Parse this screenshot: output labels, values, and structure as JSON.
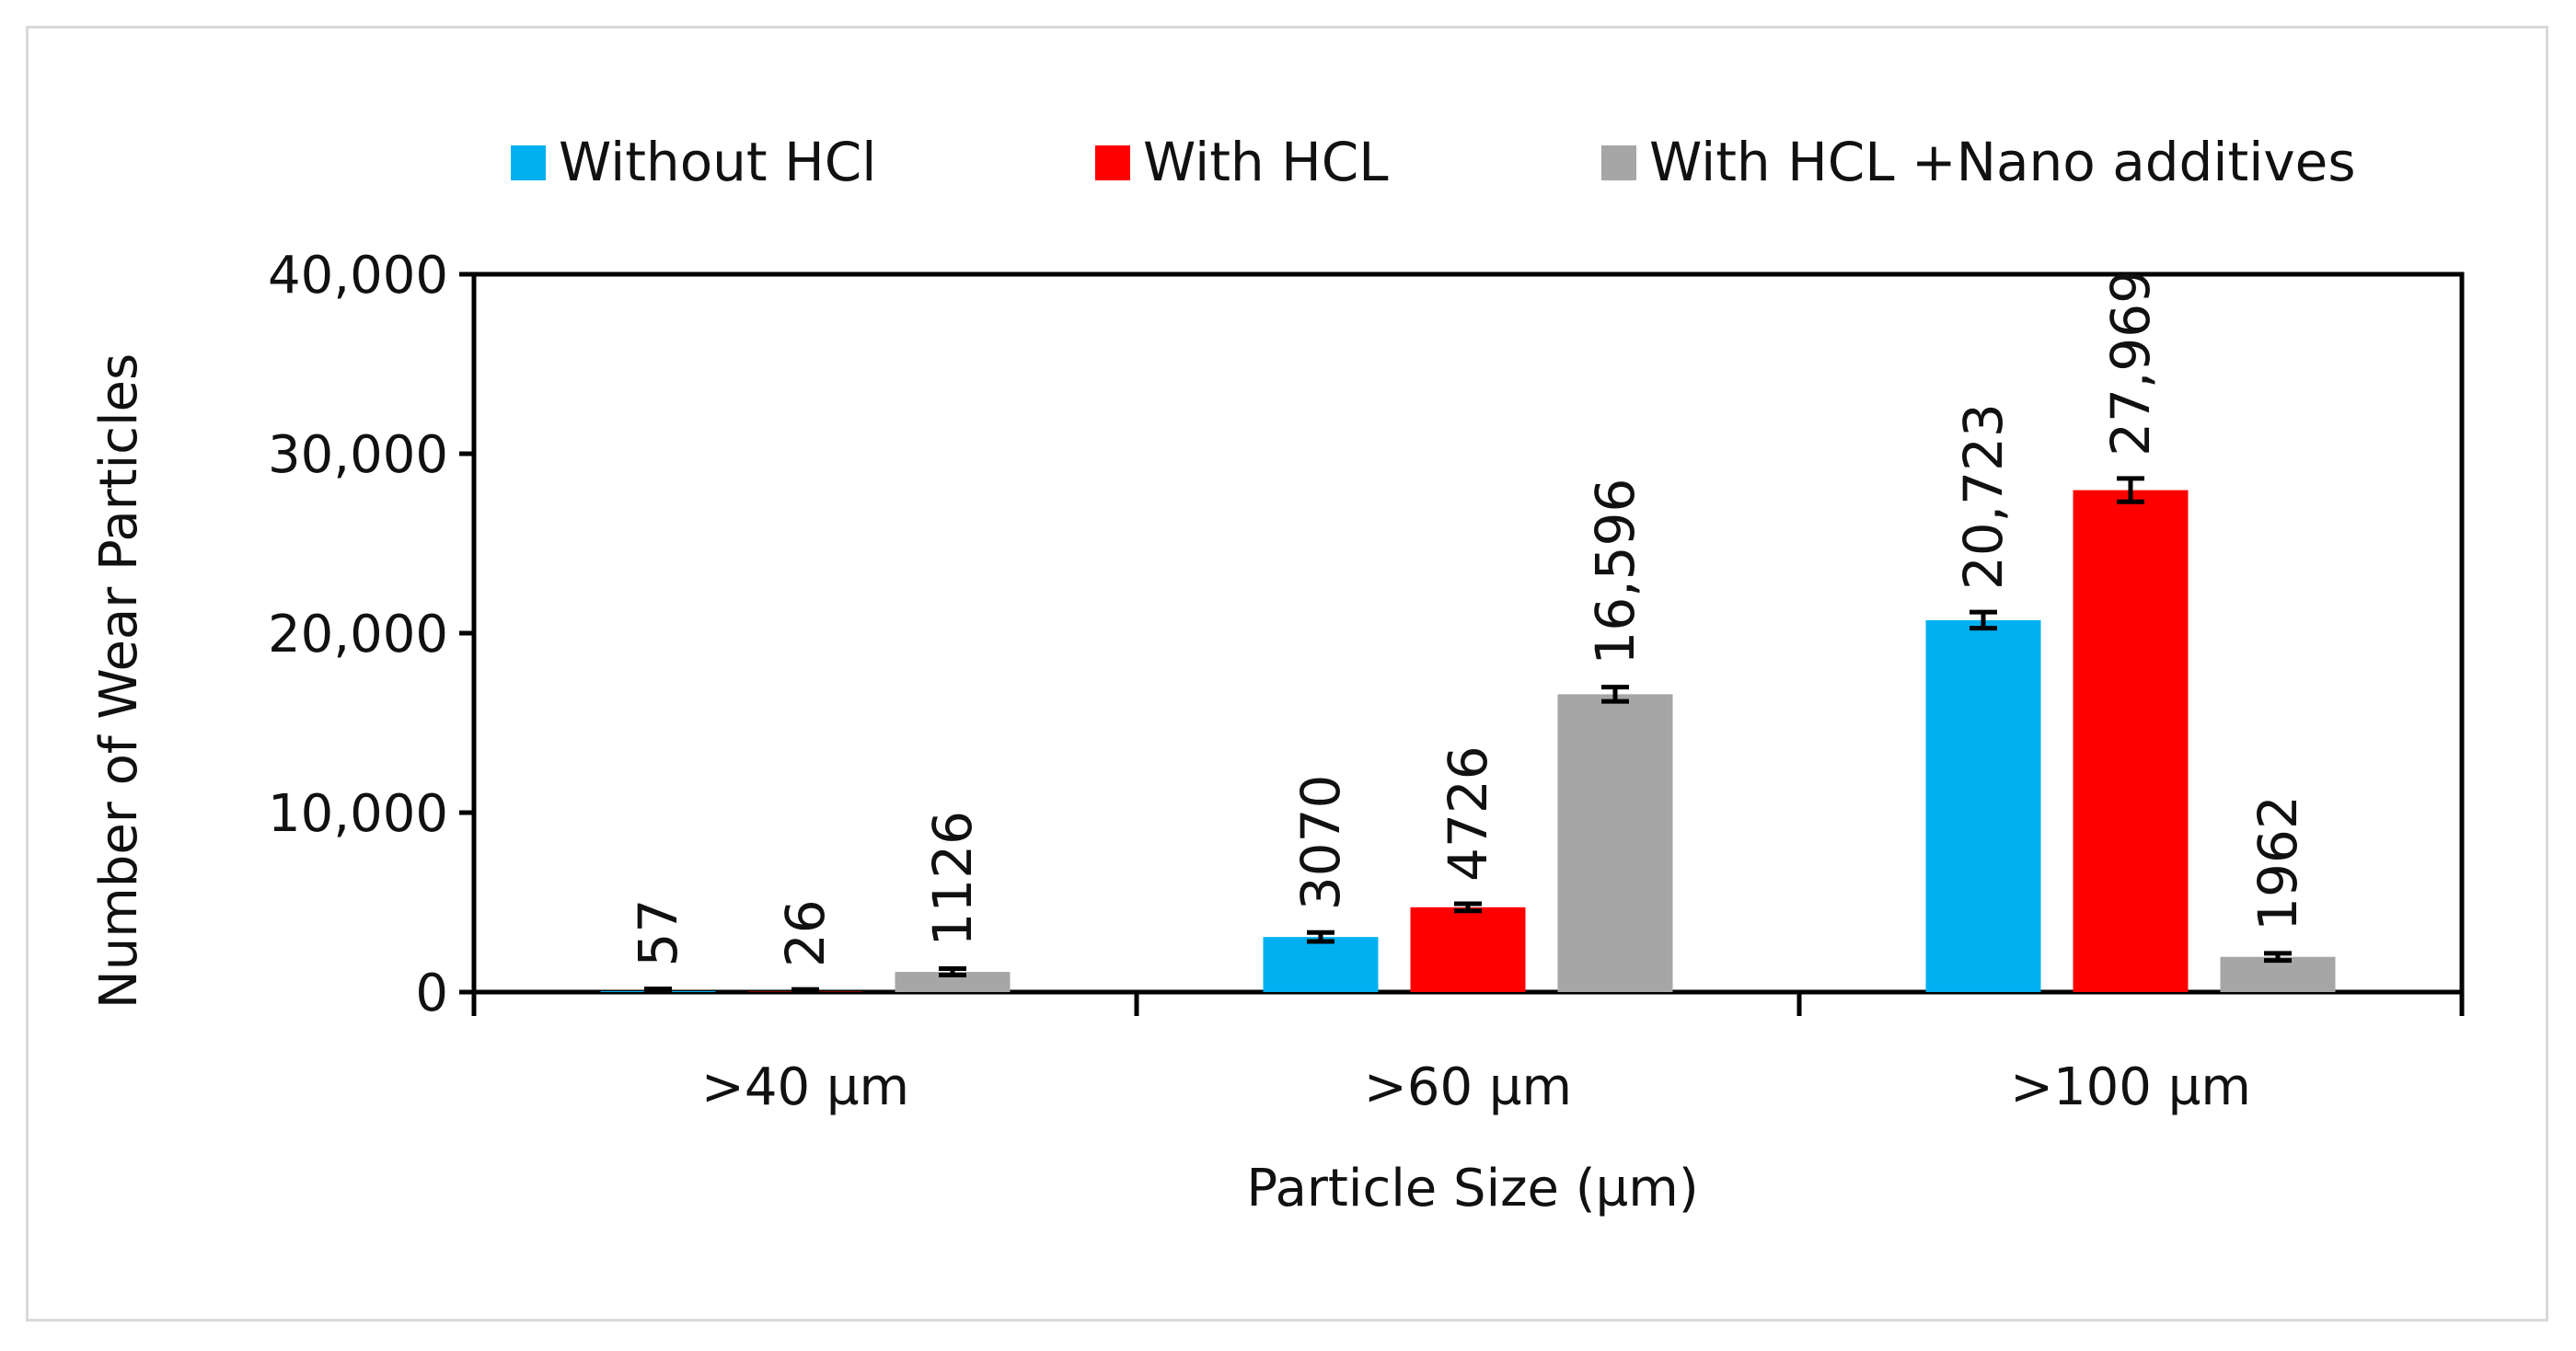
{
  "chart_data": {
    "type": "bar",
    "title": "",
    "xlabel": "Particle Size (µm)",
    "ylabel": "Number of Wear Particles",
    "categories": [
      ">40 µm",
      ">60 µm",
      ">100 µm"
    ],
    "ylim": [
      0,
      40000
    ],
    "yticks": [
      0,
      10000,
      20000,
      30000,
      40000
    ],
    "ytick_labels": [
      "0",
      "10,000",
      "20,000",
      "30,000",
      "40,000"
    ],
    "grid": false,
    "legend_position": "top",
    "error_bars": true,
    "series": [
      {
        "name": "Without HCl",
        "color": "#00b0f0",
        "values": [
          57,
          3070,
          20723
        ],
        "labels": [
          "57",
          "3070",
          "20,723"
        ],
        "errors": [
          120,
          250,
          450
        ]
      },
      {
        "name": "With HCL",
        "color": "#ff0000",
        "values": [
          26,
          4726,
          27969
        ],
        "labels": [
          "26",
          "4726",
          "27,969"
        ],
        "errors": [
          120,
          200,
          650
        ]
      },
      {
        "name": "With HCL +Nano additives",
        "color": "#a6a6a6",
        "values": [
          1126,
          16596,
          1962
        ],
        "labels": [
          "1126",
          "16,596",
          "1962"
        ],
        "errors": [
          180,
          400,
          200
        ]
      }
    ]
  }
}
